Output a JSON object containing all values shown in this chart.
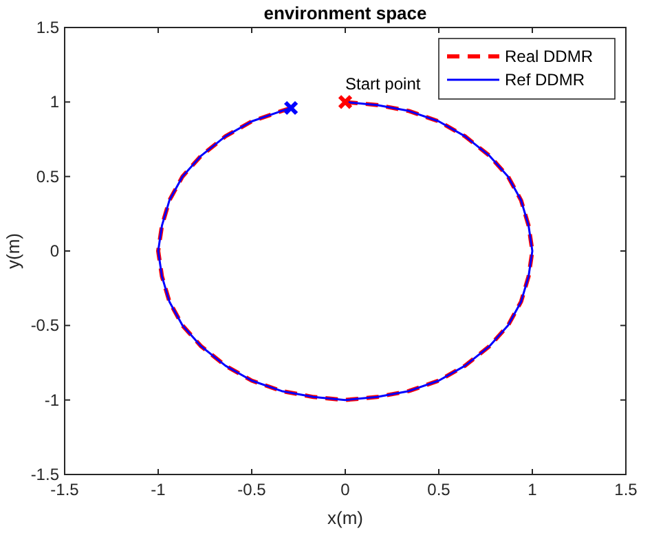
{
  "chart_data": {
    "type": "line",
    "title": "environment space",
    "xlabel": "x(m)",
    "ylabel": "y(m)",
    "xlim": [
      -1.5,
      1.5
    ],
    "ylim": [
      -1.5,
      1.5
    ],
    "xticks": [
      -1.5,
      -1,
      -0.5,
      0,
      0.5,
      1,
      1.5
    ],
    "yticks": [
      -1.5,
      -1,
      -0.5,
      0,
      0.5,
      1,
      1.5
    ],
    "grid": false,
    "legend": "top right",
    "series": [
      {
        "name": "Real DDMR",
        "color": "#ff0000",
        "line_style": "dashed",
        "marker": "none",
        "x": [
          0,
          0.17,
          0.34,
          0.5,
          0.64,
          0.77,
          0.87,
          0.94,
          0.98,
          1,
          0.98,
          0.94,
          0.87,
          0.77,
          0.64,
          0.5,
          0.34,
          0.17,
          0,
          -0.17,
          -0.34,
          -0.5,
          -0.64,
          -0.77,
          -0.87,
          -0.94,
          -0.98,
          -1,
          -0.98,
          -0.94,
          -0.87,
          -0.77,
          -0.64,
          -0.5,
          -0.34,
          -0.29
        ],
        "values": [
          1,
          0.98,
          0.94,
          0.87,
          0.77,
          0.64,
          0.5,
          0.34,
          0.17,
          0,
          -0.17,
          -0.34,
          -0.5,
          -0.64,
          -0.77,
          -0.87,
          -0.94,
          -0.98,
          -1,
          -0.98,
          -0.94,
          -0.87,
          -0.77,
          -0.64,
          -0.5,
          -0.34,
          -0.17,
          0,
          0.17,
          0.34,
          0.5,
          0.64,
          0.77,
          0.87,
          0.94,
          0.96
        ]
      },
      {
        "name": "Ref DDMR",
        "color": "#0000ff",
        "line_style": "solid",
        "marker": "none",
        "x": [
          0,
          0.17,
          0.34,
          0.5,
          0.64,
          0.77,
          0.87,
          0.94,
          0.98,
          1,
          0.98,
          0.94,
          0.87,
          0.77,
          0.64,
          0.5,
          0.34,
          0.17,
          0,
          -0.17,
          -0.34,
          -0.5,
          -0.64,
          -0.77,
          -0.87,
          -0.94,
          -0.98,
          -1,
          -0.98,
          -0.94,
          -0.87,
          -0.77,
          -0.64,
          -0.5,
          -0.34,
          -0.29
        ],
        "values": [
          1,
          0.98,
          0.94,
          0.87,
          0.77,
          0.64,
          0.5,
          0.34,
          0.17,
          0,
          -0.17,
          -0.34,
          -0.5,
          -0.64,
          -0.77,
          -0.87,
          -0.94,
          -0.98,
          -1,
          -0.98,
          -0.94,
          -0.87,
          -0.77,
          -0.64,
          -0.5,
          -0.34,
          -0.17,
          0,
          0.17,
          0.34,
          0.5,
          0.64,
          0.77,
          0.87,
          0.94,
          0.96
        ]
      },
      {
        "type": "scatter",
        "color": "#ff0000",
        "marker": "cross",
        "x": [
          0
        ],
        "values": [
          1
        ]
      },
      {
        "type": "scatter",
        "color": "#0000ff",
        "marker": "cross",
        "x": [
          -0.29
        ],
        "values": [
          0.96
        ]
      }
    ],
    "annotations": [
      {
        "text": "Start point",
        "x": 0,
        "y": 1
      }
    ]
  }
}
